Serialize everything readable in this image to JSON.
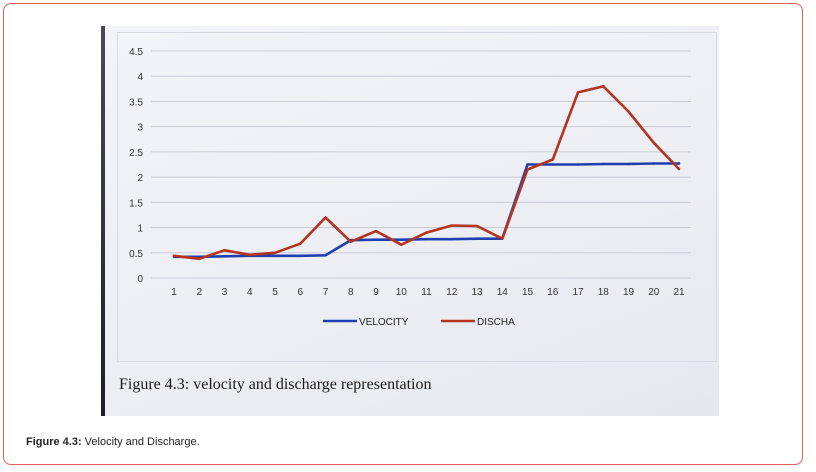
{
  "chart_data": {
    "type": "line",
    "categories": [
      "1",
      "2",
      "3",
      "4",
      "5",
      "6",
      "7",
      "8",
      "9",
      "10",
      "11",
      "12",
      "13",
      "14",
      "15",
      "16",
      "17",
      "18",
      "19",
      "20",
      "21"
    ],
    "y_ticks": [
      "0",
      "0.5",
      "1",
      "1.5",
      "2",
      "2.5",
      "3",
      "3.5",
      "4",
      "4.5"
    ],
    "ylim": [
      0,
      4.5
    ],
    "grid": true,
    "legend_position": "bottom",
    "series": [
      {
        "name": "VELOCITY",
        "color": "#1f3fae",
        "values": [
          0.42,
          0.42,
          0.43,
          0.44,
          0.44,
          0.44,
          0.45,
          0.75,
          0.76,
          0.76,
          0.77,
          0.77,
          0.78,
          0.78,
          2.25,
          2.25,
          2.25,
          2.26,
          2.26,
          2.27,
          2.27
        ]
      },
      {
        "name": "DISCHA",
        "color": "#b3341f",
        "values": [
          0.44,
          0.38,
          0.55,
          0.46,
          0.5,
          0.68,
          1.2,
          0.72,
          0.93,
          0.66,
          0.9,
          1.04,
          1.03,
          0.78,
          2.15,
          2.35,
          3.68,
          3.8,
          3.3,
          2.68,
          2.16
        ]
      }
    ],
    "annotation": "Figure 4.3: velocity and discharge representation"
  },
  "caption": {
    "label": "Figure 4.3:",
    "text": " Velocity and Discharge."
  }
}
